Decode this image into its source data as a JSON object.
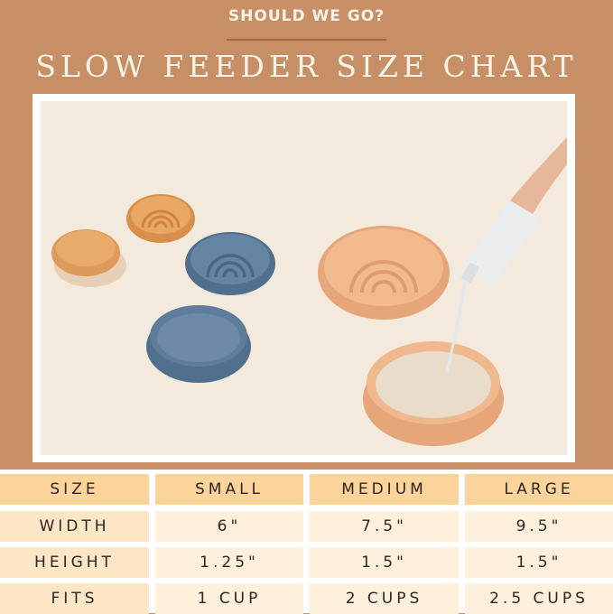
{
  "header": {
    "eyebrow": "SHOULD WE GO?",
    "title": "SLOW FEEDER SIZE CHART"
  },
  "photo": {
    "icon": "slow-feeder-bowls-photo",
    "colors": {
      "orange": "#dd9a5a",
      "blue": "#5a7b98",
      "peach": "#efb78a",
      "background": "#f3e9dd"
    }
  },
  "table": {
    "headers": [
      "SIZE",
      "SMALL",
      "MEDIUM",
      "LARGE"
    ],
    "rows": [
      [
        "WIDTH",
        "6\"",
        "7.5\"",
        "9.5\""
      ],
      [
        "HEIGHT",
        "1.25\"",
        "1.5\"",
        "1.5\""
      ],
      [
        "FITS",
        "1 CUP",
        "2 CUPS",
        "2.5 CUPS"
      ]
    ]
  },
  "colors": {
    "background": "#c68f66",
    "header_cell": "#fdd39c",
    "body_cell": "#fff0dc"
  }
}
